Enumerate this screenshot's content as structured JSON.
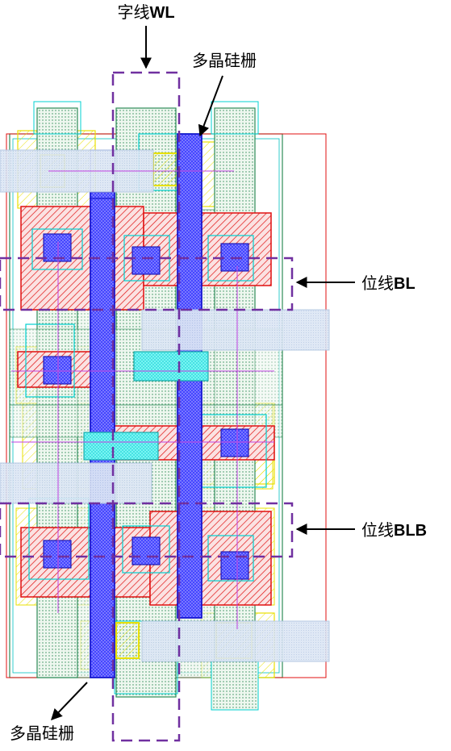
{
  "labels": {
    "word_line_prefix": "字线",
    "word_line_suffix": "WL",
    "poly_gate_top": "多晶硅栅",
    "poly_gate_bottom": "多晶硅栅",
    "bit_line_prefix": "位线",
    "bit_line_suffix": "BL",
    "bit_line_bar_prefix": "位线",
    "bit_line_bar_suffix": "BLB"
  },
  "colors": {
    "poly": "#1a1aff",
    "metal_red": "#e01010",
    "diffusion_green": "#2e8b57",
    "nwell_yellow": "#e8e000",
    "contact_cyan": "#00d0d0",
    "metal_light": "#c8d8f0",
    "dash_purple": "#7030a0"
  }
}
